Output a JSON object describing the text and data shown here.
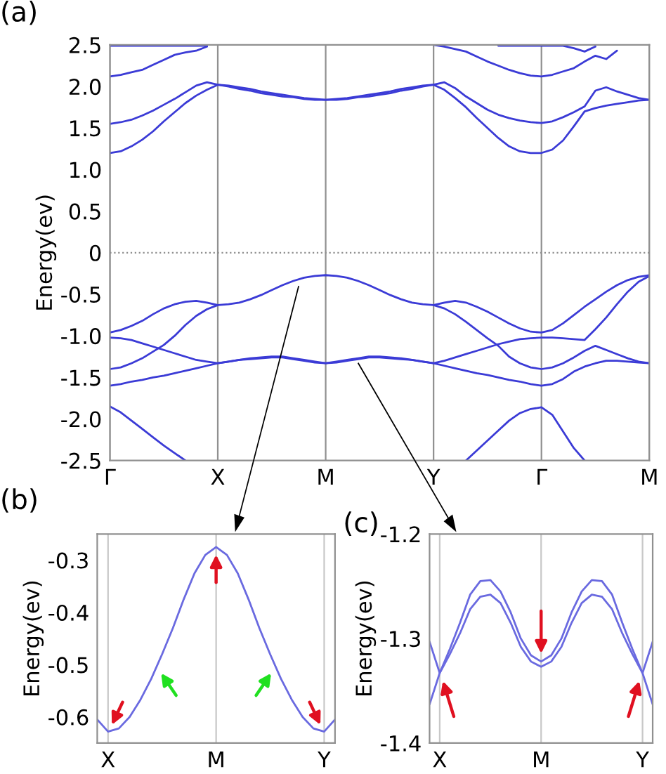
{
  "chart_data": [
    {
      "type": "line",
      "title": "(a)",
      "ylabel": "Energy(ev)",
      "ylim": [
        -2.5,
        2.5
      ],
      "grid": "x",
      "categories": [
        "Γ",
        null,
        null,
        null,
        null,
        null,
        null,
        null,
        null,
        null,
        "X",
        null,
        null,
        null,
        null,
        null,
        null,
        null,
        null,
        null,
        "M",
        null,
        null,
        null,
        null,
        null,
        null,
        null,
        null,
        null,
        "Y",
        null,
        null,
        null,
        null,
        null,
        null,
        null,
        null,
        null,
        "Γ",
        null,
        null,
        null,
        null,
        null,
        null,
        null,
        null,
        null,
        "M"
      ],
      "yticks": [
        {
          "value": 2.5,
          "label": "2.5"
        },
        {
          "value": 2,
          "label": "2.0"
        },
        {
          "value": 1.5,
          "label": "1.5"
        },
        {
          "value": 1,
          "label": "1.0"
        },
        {
          "value": 0.5,
          "label": "0.5"
        },
        {
          "value": 0,
          "label": "0"
        },
        {
          "value": -0.5,
          "label": "-0.5"
        },
        {
          "value": -1,
          "label": "-1.0"
        },
        {
          "value": -1.5,
          "label": "-1.5"
        },
        {
          "value": -2,
          "label": "-2.0"
        },
        {
          "value": -2.5,
          "label": "-2.5"
        }
      ],
      "ref_lines": [
        {
          "axis": "y",
          "value": 0,
          "color": "#909090",
          "line_style": "dotted"
        }
      ],
      "series": [
        {
          "color": "#3b3bd6",
          "values": [
            2.49,
            2.49,
            2.49,
            2.49,
            2.49,
            2.49,
            2.49,
            2.49,
            2.49,
            2.49,
            null,
            null,
            null,
            null,
            null,
            null,
            null,
            null,
            null,
            null,
            null,
            null,
            null,
            null,
            null,
            null,
            null,
            null,
            null,
            null,
            null,
            null,
            null,
            null,
            null,
            null,
            null,
            null,
            null,
            null,
            null,
            null,
            null,
            null,
            null,
            null,
            null,
            null,
            null,
            null,
            null
          ]
        },
        {
          "color": "#3b3bd6",
          "values": [
            2.12,
            2.14,
            2.17,
            2.2,
            2.26,
            2.32,
            2.38,
            2.41,
            2.43,
            2.48,
            null,
            null,
            null,
            null,
            null,
            null,
            null,
            null,
            null,
            null,
            null,
            null,
            null,
            null,
            null,
            null,
            null,
            null,
            null,
            null,
            null,
            null,
            null,
            null,
            null,
            null,
            null,
            null,
            null,
            null,
            null,
            null,
            null,
            null,
            null,
            null,
            null,
            null,
            null,
            null,
            null
          ]
        },
        {
          "color": "#3b3bd6",
          "values": [
            1.55,
            1.57,
            1.6,
            1.65,
            1.71,
            1.78,
            1.85,
            1.93,
            2.01,
            2.05,
            2.02,
            2.01,
            1.99,
            1.97,
            1.94,
            1.92,
            1.9,
            1.88,
            1.86,
            1.85,
            1.84,
            1.85,
            1.86,
            1.88,
            1.9,
            1.92,
            1.94,
            1.97,
            1.99,
            2.01,
            2.02,
            2.05,
            1.98,
            1.88,
            1.8,
            1.72,
            1.66,
            1.62,
            1.59,
            1.57,
            1.56,
            1.58,
            1.63,
            1.69,
            1.76,
            1.95,
            1.99,
            1.94,
            1.9,
            1.86,
            1.84
          ]
        },
        {
          "color": "#3b3bd6",
          "values": [
            1.2,
            1.22,
            1.28,
            1.36,
            1.46,
            1.58,
            1.69,
            1.8,
            1.89,
            1.96,
            2.02,
            2.0,
            1.97,
            1.95,
            1.92,
            1.9,
            1.88,
            1.87,
            1.85,
            1.84,
            1.84,
            1.84,
            1.85,
            1.87,
            1.88,
            1.9,
            1.92,
            1.95,
            1.97,
            2.0,
            2.02,
            1.96,
            1.86,
            1.75,
            1.62,
            1.5,
            1.38,
            1.28,
            1.22,
            1.2,
            1.2,
            1.24,
            1.35,
            1.52,
            1.7,
            1.74,
            1.77,
            1.79,
            1.81,
            1.83,
            1.84
          ]
        },
        {
          "color": "#3b3bd6",
          "values": [
            null,
            null,
            null,
            null,
            null,
            null,
            null,
            null,
            null,
            null,
            null,
            null,
            null,
            null,
            null,
            null,
            null,
            null,
            null,
            null,
            null,
            null,
            null,
            null,
            null,
            null,
            null,
            null,
            null,
            null,
            2.5,
            2.48,
            2.45,
            2.42,
            2.36,
            2.3,
            2.25,
            2.2,
            2.16,
            2.13,
            2.12,
            2.14,
            2.18,
            2.22,
            2.3,
            2.37,
            2.33,
            2.43,
            null,
            null,
            null
          ]
        },
        {
          "color": "#3b3bd6",
          "values": [
            null,
            null,
            null,
            null,
            null,
            null,
            null,
            null,
            null,
            null,
            null,
            null,
            null,
            null,
            null,
            null,
            null,
            null,
            null,
            null,
            null,
            null,
            null,
            null,
            null,
            null,
            null,
            null,
            null,
            null,
            null,
            null,
            null,
            null,
            null,
            null,
            2.49,
            2.49,
            2.49,
            2.49,
            2.49,
            2.49,
            2.49,
            2.46,
            2.42,
            2.48,
            null,
            null,
            null,
            null,
            null
          ]
        },
        {
          "color": "#3b3bd6",
          "values": [
            -0.96,
            -0.93,
            -0.88,
            -0.82,
            -0.74,
            -0.67,
            -0.62,
            -0.59,
            -0.58,
            -0.6,
            -0.63,
            -0.62,
            -0.6,
            -0.56,
            -0.51,
            -0.45,
            -0.39,
            -0.34,
            -0.3,
            -0.28,
            -0.27,
            -0.28,
            -0.3,
            -0.34,
            -0.39,
            -0.45,
            -0.51,
            -0.56,
            -0.6,
            -0.62,
            -0.63,
            -0.6,
            -0.58,
            -0.6,
            -0.65,
            -0.71,
            -0.78,
            -0.85,
            -0.91,
            -0.95,
            -0.96,
            -0.93,
            -0.85,
            -0.75,
            -0.65,
            -0.56,
            -0.47,
            -0.39,
            -0.33,
            -0.29,
            -0.27
          ]
        },
        {
          "color": "#3b3bd6",
          "values": [
            -1.4,
            -1.38,
            -1.33,
            -1.27,
            -1.19,
            -1.11,
            -1.0,
            -0.87,
            -0.76,
            -0.68,
            -0.63,
            null,
            null,
            null,
            null,
            null,
            null,
            null,
            null,
            null,
            null,
            null,
            null,
            null,
            null,
            null,
            null,
            null,
            null,
            null,
            null,
            null,
            null,
            null,
            null,
            null,
            null,
            null,
            null,
            null,
            null,
            null,
            null,
            null,
            null,
            null,
            null,
            null,
            null,
            null,
            null
          ]
        },
        {
          "color": "#3b3bd6",
          "values": [
            null,
            null,
            null,
            null,
            null,
            null,
            null,
            null,
            null,
            null,
            null,
            null,
            null,
            null,
            null,
            null,
            null,
            null,
            null,
            null,
            null,
            null,
            null,
            null,
            null,
            null,
            null,
            null,
            null,
            null,
            -0.63,
            -0.67,
            -0.74,
            -0.83,
            -0.93,
            -1.03,
            -1.12,
            -1.25,
            -1.33,
            -1.38,
            -1.4,
            -1.38,
            -1.33,
            -1.26,
            -1.18,
            -1.12,
            -1.17,
            -1.22,
            -1.27,
            -1.31,
            -1.33
          ]
        },
        {
          "color": "#3b3bd6",
          "values": [
            -1.02,
            -1.03,
            -1.05,
            -1.09,
            -1.13,
            -1.17,
            -1.21,
            -1.25,
            -1.29,
            -1.31,
            -1.33,
            -1.31,
            -1.29,
            -1.28,
            -1.27,
            -1.26,
            -1.26,
            -1.28,
            -1.3,
            -1.32,
            -1.33,
            -1.32,
            -1.3,
            -1.28,
            -1.26,
            -1.26,
            -1.27,
            -1.28,
            -1.29,
            -1.31,
            -1.33,
            -1.3,
            -1.26,
            -1.22,
            -1.18,
            -1.14,
            -1.1,
            -1.07,
            -1.04,
            -1.03,
            -1.02,
            -1.02,
            -1.03,
            -1.04,
            -1.05,
            -0.92,
            -0.78,
            -0.62,
            -0.47,
            -0.35,
            -0.28
          ]
        },
        {
          "color": "#3b3bd6",
          "values": [
            -1.6,
            -1.58,
            -1.55,
            -1.53,
            -1.5,
            -1.48,
            -1.45,
            -1.42,
            -1.39,
            -1.36,
            -1.33,
            -1.31,
            -1.29,
            -1.27,
            -1.26,
            -1.25,
            -1.25,
            -1.27,
            -1.29,
            -1.31,
            -1.33,
            -1.31,
            -1.29,
            -1.27,
            -1.25,
            -1.25,
            -1.26,
            -1.27,
            -1.29,
            -1.31,
            -1.33,
            -1.36,
            -1.39,
            -1.42,
            -1.45,
            -1.47,
            -1.5,
            -1.53,
            -1.55,
            -1.58,
            -1.6,
            -1.58,
            -1.52,
            -1.43,
            -1.37,
            -1.33,
            -1.3,
            -1.3,
            -1.31,
            -1.32,
            -1.33
          ]
        },
        {
          "color": "#3b3bd6",
          "values": [
            -1.85,
            -1.92,
            -2.02,
            -2.12,
            -2.22,
            -2.32,
            -2.41,
            -2.5,
            null,
            null,
            null,
            null,
            null,
            null,
            null,
            null,
            null,
            null,
            null,
            null,
            null,
            null,
            null,
            null,
            null,
            null,
            null,
            null,
            null,
            null,
            null,
            null,
            null,
            null,
            null,
            null,
            null,
            null,
            null,
            null,
            null,
            null,
            null,
            null,
            null,
            null,
            null,
            null,
            null,
            null,
            null
          ]
        },
        {
          "color": "#3b3bd6",
          "values": [
            null,
            null,
            null,
            null,
            null,
            null,
            null,
            null,
            null,
            null,
            null,
            null,
            null,
            null,
            null,
            null,
            null,
            null,
            null,
            null,
            null,
            null,
            null,
            null,
            null,
            null,
            null,
            null,
            null,
            null,
            null,
            null,
            null,
            -2.5,
            -2.38,
            -2.26,
            -2.14,
            -2.02,
            -1.93,
            -1.88,
            -1.86,
            -1.95,
            -2.15,
            -2.35,
            -2.5,
            null,
            null,
            null,
            null,
            null,
            null
          ]
        }
      ]
    },
    {
      "type": "line",
      "title": "(b)",
      "ylabel": "Energy(ev)",
      "ylim": [
        -0.65,
        -0.25
      ],
      "grid": "x",
      "categories": [
        null,
        "X",
        null,
        null,
        null,
        null,
        null,
        null,
        null,
        null,
        null,
        "M",
        null,
        null,
        null,
        null,
        null,
        null,
        null,
        null,
        null,
        "Y",
        null
      ],
      "yticks": [
        {
          "value": -0.3,
          "label": "-0.3"
        },
        {
          "value": -0.4,
          "label": "-0.4"
        },
        {
          "value": -0.5,
          "label": "-0.5"
        },
        {
          "value": -0.6,
          "label": "-0.6"
        }
      ],
      "series": [
        {
          "color": "#6a6ae0",
          "values": [
            -0.605,
            -0.628,
            -0.622,
            -0.6,
            -0.567,
            -0.527,
            -0.48,
            -0.43,
            -0.375,
            -0.325,
            -0.29,
            -0.275,
            -0.29,
            -0.325,
            -0.375,
            -0.43,
            -0.48,
            -0.527,
            -0.567,
            -0.6,
            -0.622,
            -0.628,
            -0.605
          ]
        }
      ]
    },
    {
      "type": "line",
      "title": "(c)",
      "ylabel": "Energy(ev)",
      "ylim": [
        -1.4,
        -1.2
      ],
      "grid": "x",
      "categories": [
        null,
        "X",
        null,
        null,
        null,
        null,
        null,
        null,
        null,
        null,
        null,
        "M",
        null,
        null,
        null,
        null,
        null,
        null,
        null,
        null,
        null,
        "Y",
        null
      ],
      "yticks": [
        {
          "value": -1.2,
          "label": "-1.2"
        },
        {
          "value": -1.3,
          "label": "-1.3"
        },
        {
          "value": -1.4,
          "label": "-1.4"
        }
      ],
      "series": [
        {
          "color": "#6a6ae0",
          "values": [
            -1.363,
            -1.333,
            -1.31,
            -1.285,
            -1.258,
            -1.245,
            -1.244,
            -1.255,
            -1.275,
            -1.3,
            -1.316,
            -1.322,
            -1.316,
            -1.3,
            -1.275,
            -1.255,
            -1.244,
            -1.245,
            -1.258,
            -1.285,
            -1.31,
            -1.333,
            -1.363
          ]
        },
        {
          "color": "#6a6ae0",
          "values": [
            -1.303,
            -1.333,
            -1.315,
            -1.295,
            -1.272,
            -1.26,
            -1.258,
            -1.266,
            -1.285,
            -1.308,
            -1.322,
            -1.327,
            -1.322,
            -1.308,
            -1.285,
            -1.266,
            -1.258,
            -1.26,
            -1.272,
            -1.295,
            -1.315,
            -1.333,
            -1.303
          ]
        }
      ]
    }
  ]
}
